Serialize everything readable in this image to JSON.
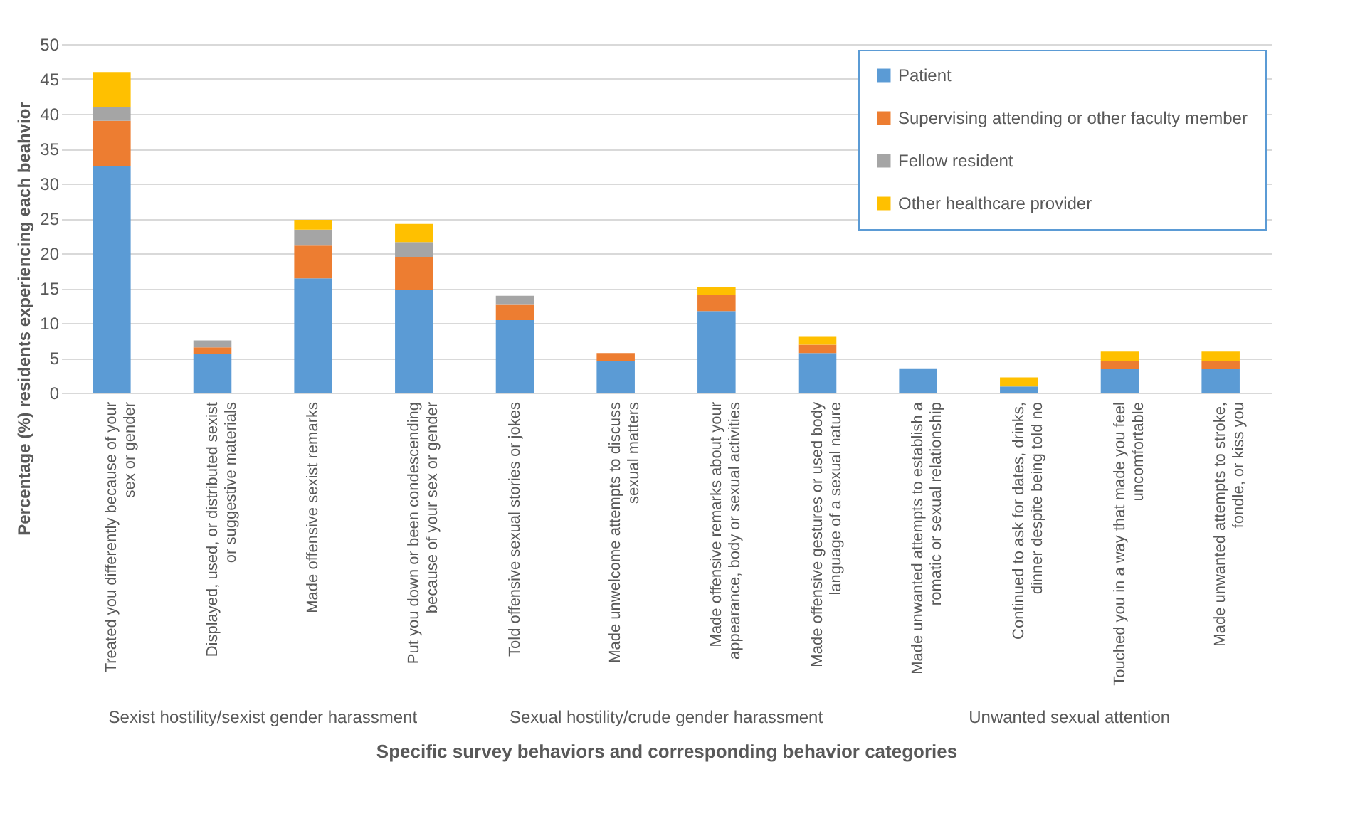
{
  "chart_data": {
    "type": "bar",
    "stacked": true,
    "xlabel": "Specific survey behaviors and corresponding behavior categories",
    "ylabel": "Percentage (%) residents experiencing each beahvior",
    "categories": [
      "Treated you differently because of your sex or gender",
      "Displayed, used, or distributed sexist or suggestive materials",
      "Made offensive sexist remarks",
      "Put you down or been condescending because of your sex or gender",
      "Told offensive sexual stories or jokes",
      "Made unwelcome attempts to discuss sexual matters",
      "Made offensive remarks about your appearance, body or sexual activities",
      "Made offensive gestures or used body language of a sexual nature",
      "Made unwanted attempts to establish a romatic or sexual relationship",
      "Continued to ask for dates, drinks, dinner despite being told no",
      "Touched you in a way that made you feel uncomfortable",
      "Made unwanted attempts to stroke, fondle, or kiss you"
    ],
    "series": [
      {
        "name": "Patient",
        "color": "#5b9bd5",
        "values": [
          32.5,
          5.5,
          16.4,
          14.8,
          10.4,
          4.5,
          11.7,
          5.7,
          3.5,
          0.9,
          3.4,
          3.4
        ]
      },
      {
        "name": "Supervising attending or other faculty member",
        "color": "#ed7d31",
        "values": [
          6.5,
          1,
          4.7,
          4.7,
          2.3,
          1.2,
          2.3,
          1.2,
          0,
          0,
          1.2,
          1.2
        ]
      },
      {
        "name": "Fellow resident",
        "color": "#a5a5a5",
        "values": [
          2,
          1,
          2.3,
          2.1,
          1.2,
          0,
          0,
          0,
          0,
          0,
          0,
          0
        ]
      },
      {
        "name": "Other healthcare provider",
        "color": "#ffc000",
        "values": [
          5,
          0,
          1.4,
          2.6,
          0,
          0,
          1.1,
          1.2,
          0,
          1.3,
          1.3,
          1.3
        ]
      }
    ],
    "ylim": [
      0,
      50
    ],
    "yticks": [
      0,
      5,
      10,
      15,
      20,
      25,
      30,
      35,
      40,
      45,
      50
    ],
    "grid": "y",
    "legend": "top right",
    "annotations": [
      "Sexist hostility/sexist gender harassment",
      "Sexual hostility/crude gender harassment",
      "Unwanted sexual attention"
    ]
  }
}
